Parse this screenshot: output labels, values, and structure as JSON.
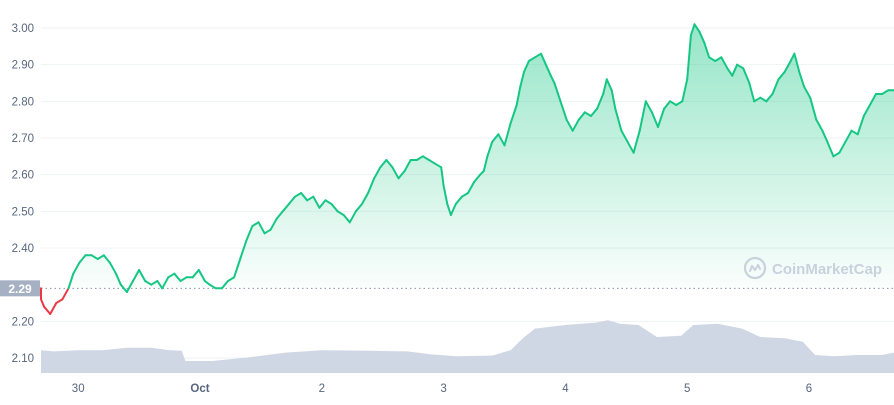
{
  "watermark": {
    "brand": "CoinMarketCap",
    "icon": "coinmarketcap-logo-icon"
  },
  "colors": {
    "up": "#16c784",
    "down": "#ea3943",
    "volume": "#cfd6e4",
    "grid": "#eff2f5",
    "axis_text": "#58667e",
    "baseline_label_bg": "#a6b0c3",
    "baseline_label_text": "#ffffff",
    "watermark": "#c9d1dd"
  },
  "chart_data": {
    "type": "area",
    "title": "",
    "xlabel": "",
    "ylabel": "",
    "x_ticks": [
      "30",
      "Oct",
      "2",
      "3",
      "4",
      "5",
      "6"
    ],
    "y_ticks": [
      "3.00",
      "2.90",
      "2.80",
      "2.70",
      "2.60",
      "2.50",
      "2.40",
      "2.20",
      "2.10"
    ],
    "ylim": [
      2.06,
      3.04
    ],
    "xlim_days": [
      -1.39,
      5.73
    ],
    "baseline": {
      "value": 2.29,
      "label": "2.29",
      "style": "dotted"
    },
    "grid": "horizontal",
    "price_series": {
      "name": "",
      "points": [
        [
          -1.39,
          2.29
        ],
        [
          -1.33,
          2.26
        ],
        [
          -1.28,
          2.24
        ],
        [
          -1.23,
          2.22
        ],
        [
          -1.18,
          2.25
        ],
        [
          -1.13,
          2.26
        ],
        [
          -1.08,
          2.29
        ],
        [
          -1.04,
          2.33
        ],
        [
          -0.99,
          2.36
        ],
        [
          -0.94,
          2.38
        ],
        [
          -0.89,
          2.38
        ],
        [
          -0.84,
          2.37
        ],
        [
          -0.79,
          2.38
        ],
        [
          -0.74,
          2.36
        ],
        [
          -0.69,
          2.33
        ],
        [
          -0.65,
          2.3
        ],
        [
          -0.6,
          2.28
        ],
        [
          -0.55,
          2.31
        ],
        [
          -0.5,
          2.34
        ],
        [
          -0.45,
          2.31
        ],
        [
          -0.4,
          2.3
        ],
        [
          -0.35,
          2.31
        ],
        [
          -0.31,
          2.29
        ],
        [
          -0.26,
          2.32
        ],
        [
          -0.21,
          2.33
        ],
        [
          -0.16,
          2.31
        ],
        [
          -0.11,
          2.32
        ],
        [
          -0.06,
          2.32
        ],
        [
          -0.01,
          2.34
        ],
        [
          0.04,
          2.31
        ],
        [
          0.08,
          2.3
        ],
        [
          0.13,
          2.29
        ],
        [
          0.18,
          2.29
        ],
        [
          0.23,
          2.31
        ],
        [
          0.28,
          2.32
        ],
        [
          0.33,
          2.37
        ],
        [
          0.38,
          2.42
        ],
        [
          0.43,
          2.46
        ],
        [
          0.48,
          2.47
        ],
        [
          0.53,
          2.44
        ],
        [
          0.58,
          2.45
        ],
        [
          0.63,
          2.48
        ],
        [
          0.68,
          2.5
        ],
        [
          0.73,
          2.52
        ],
        [
          0.78,
          2.54
        ],
        [
          0.83,
          2.55
        ],
        [
          0.88,
          2.53
        ],
        [
          0.93,
          2.54
        ],
        [
          0.98,
          2.51
        ],
        [
          1.03,
          2.53
        ],
        [
          1.08,
          2.52
        ],
        [
          1.13,
          2.5
        ],
        [
          1.18,
          2.49
        ],
        [
          1.23,
          2.47
        ],
        [
          1.28,
          2.5
        ],
        [
          1.33,
          2.52
        ],
        [
          1.38,
          2.55
        ],
        [
          1.43,
          2.59
        ],
        [
          1.48,
          2.62
        ],
        [
          1.53,
          2.64
        ],
        [
          1.58,
          2.62
        ],
        [
          1.63,
          2.59
        ],
        [
          1.68,
          2.61
        ],
        [
          1.73,
          2.64
        ],
        [
          1.78,
          2.64
        ],
        [
          1.83,
          2.65
        ],
        [
          1.88,
          2.64
        ],
        [
          1.93,
          2.63
        ],
        [
          1.98,
          2.62
        ],
        [
          2.0,
          2.57
        ],
        [
          2.03,
          2.52
        ],
        [
          2.06,
          2.49
        ],
        [
          2.1,
          2.52
        ],
        [
          2.15,
          2.54
        ],
        [
          2.2,
          2.55
        ],
        [
          2.25,
          2.58
        ],
        [
          2.3,
          2.6
        ],
        [
          2.33,
          2.61
        ],
        [
          2.36,
          2.65
        ],
        [
          2.4,
          2.69
        ],
        [
          2.45,
          2.71
        ],
        [
          2.5,
          2.68
        ],
        [
          2.55,
          2.74
        ],
        [
          2.6,
          2.79
        ],
        [
          2.63,
          2.84
        ],
        [
          2.66,
          2.88
        ],
        [
          2.7,
          2.91
        ],
        [
          2.75,
          2.92
        ],
        [
          2.8,
          2.93
        ],
        [
          2.84,
          2.9
        ],
        [
          2.88,
          2.87
        ],
        [
          2.91,
          2.85
        ],
        [
          2.96,
          2.8
        ],
        [
          3.01,
          2.75
        ],
        [
          3.06,
          2.72
        ],
        [
          3.11,
          2.75
        ],
        [
          3.16,
          2.77
        ],
        [
          3.21,
          2.76
        ],
        [
          3.26,
          2.78
        ],
        [
          3.31,
          2.82
        ],
        [
          3.34,
          2.86
        ],
        [
          3.38,
          2.83
        ],
        [
          3.41,
          2.78
        ],
        [
          3.46,
          2.72
        ],
        [
          3.51,
          2.69
        ],
        [
          3.56,
          2.66
        ],
        [
          3.61,
          2.72
        ],
        [
          3.66,
          2.8
        ],
        [
          3.71,
          2.77
        ],
        [
          3.76,
          2.73
        ],
        [
          3.81,
          2.78
        ],
        [
          3.86,
          2.8
        ],
        [
          3.91,
          2.79
        ],
        [
          3.96,
          2.8
        ],
        [
          4.0,
          2.86
        ],
        [
          4.03,
          2.98
        ],
        [
          4.06,
          3.01
        ],
        [
          4.1,
          2.99
        ],
        [
          4.14,
          2.96
        ],
        [
          4.18,
          2.92
        ],
        [
          4.23,
          2.91
        ],
        [
          4.28,
          2.92
        ],
        [
          4.33,
          2.89
        ],
        [
          4.37,
          2.87
        ],
        [
          4.41,
          2.9
        ],
        [
          4.46,
          2.89
        ],
        [
          4.51,
          2.85
        ],
        [
          4.55,
          2.8
        ],
        [
          4.6,
          2.81
        ],
        [
          4.65,
          2.8
        ],
        [
          4.7,
          2.82
        ],
        [
          4.75,
          2.86
        ],
        [
          4.8,
          2.88
        ],
        [
          4.85,
          2.91
        ],
        [
          4.88,
          2.93
        ],
        [
          4.92,
          2.88
        ],
        [
          4.96,
          2.84
        ],
        [
          5.01,
          2.81
        ],
        [
          5.06,
          2.75
        ],
        [
          5.11,
          2.72
        ],
        [
          5.15,
          2.69
        ],
        [
          5.2,
          2.65
        ],
        [
          5.25,
          2.66
        ],
        [
          5.3,
          2.69
        ],
        [
          5.35,
          2.72
        ],
        [
          5.4,
          2.71
        ],
        [
          5.45,
          2.76
        ],
        [
          5.5,
          2.79
        ],
        [
          5.55,
          2.82
        ],
        [
          5.6,
          2.82
        ],
        [
          5.65,
          2.83
        ],
        [
          5.7,
          2.83
        ],
        [
          5.73,
          2.83
        ]
      ]
    },
    "volume_series": {
      "name": "",
      "points": [
        [
          -1.39,
          0.38
        ],
        [
          -1.2,
          0.36
        ],
        [
          -1.0,
          0.38
        ],
        [
          -0.8,
          0.38
        ],
        [
          -0.6,
          0.42
        ],
        [
          -0.4,
          0.42
        ],
        [
          -0.25,
          0.38
        ],
        [
          -0.15,
          0.37
        ],
        [
          -0.12,
          0.2
        ],
        [
          0.1,
          0.2
        ],
        [
          0.4,
          0.26
        ],
        [
          0.7,
          0.34
        ],
        [
          1.0,
          0.38
        ],
        [
          1.4,
          0.37
        ],
        [
          1.7,
          0.36
        ],
        [
          1.9,
          0.31
        ],
        [
          2.1,
          0.28
        ],
        [
          2.4,
          0.29
        ],
        [
          2.55,
          0.38
        ],
        [
          2.65,
          0.58
        ],
        [
          2.75,
          0.74
        ],
        [
          3.0,
          0.8
        ],
        [
          3.25,
          0.84
        ],
        [
          3.35,
          0.88
        ],
        [
          3.45,
          0.82
        ],
        [
          3.6,
          0.8
        ],
        [
          3.75,
          0.6
        ],
        [
          3.95,
          0.62
        ],
        [
          4.05,
          0.8
        ],
        [
          4.25,
          0.82
        ],
        [
          4.45,
          0.74
        ],
        [
          4.6,
          0.6
        ],
        [
          4.8,
          0.58
        ],
        [
          4.95,
          0.52
        ],
        [
          5.05,
          0.3
        ],
        [
          5.2,
          0.28
        ],
        [
          5.4,
          0.3
        ],
        [
          5.6,
          0.3
        ],
        [
          5.73,
          0.34
        ]
      ]
    }
  }
}
